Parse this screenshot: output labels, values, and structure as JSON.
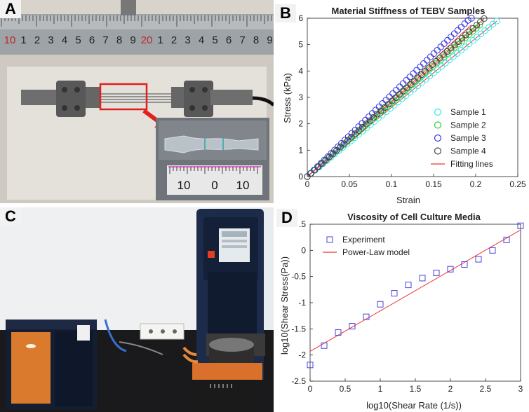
{
  "panels": {
    "a": "A",
    "b": "B",
    "c": "C",
    "d": "D"
  },
  "photo_a": {
    "ruler_numbers": [
      "10",
      "1",
      "2",
      "3",
      "4",
      "5",
      "6",
      "7",
      "8",
      "9",
      "20",
      "1",
      "2",
      "3",
      "4",
      "5",
      "6",
      "7",
      "8",
      "9"
    ],
    "scale_numbers": [
      "10",
      "0",
      "10"
    ]
  },
  "chart_data": [
    {
      "type": "scatter",
      "title": "Material Stiffness of TEBV Samples",
      "xlabel": "Strain",
      "ylabel": "Stress (kPa)",
      "xlim": [
        0,
        0.25
      ],
      "ylim": [
        0,
        6
      ],
      "xticks": [
        "0",
        "0.05",
        "0.1",
        "0.15",
        "0.2",
        "0.25"
      ],
      "yticks": [
        "0",
        "1",
        "2",
        "3",
        "4",
        "5",
        "6"
      ],
      "legend_position": "bottom-right",
      "series": [
        {
          "name": "Sample 1",
          "color": "#33e6e6",
          "marker": "circle",
          "slope": 26.2,
          "xmax": 0.225
        },
        {
          "name": "Sample 2",
          "color": "#33cc33",
          "marker": "circle",
          "slope": 28.0,
          "xmax": 0.205
        },
        {
          "name": "Sample 3",
          "color": "#3333e6",
          "marker": "circle",
          "slope": 31.0,
          "xmax": 0.195
        },
        {
          "name": "Sample 4",
          "color": "#444444",
          "marker": "circle",
          "slope": 28.5,
          "xmax": 0.21
        }
      ],
      "fit": {
        "name": "Fitting lines",
        "color": "#ee3333",
        "slopes": [
          26.2,
          28.0,
          29.5,
          28.5
        ]
      }
    },
    {
      "type": "scatter",
      "title": "Viscosity of Cell Culture Media",
      "xlabel": "log10(Shear Rate (1/s))",
      "ylabel": "log10(Shear Stress(Pa))",
      "xlim": [
        0,
        3
      ],
      "ylim": [
        -2.5,
        0.5
      ],
      "xticks": [
        "0",
        "0.5",
        "1",
        "1.5",
        "2",
        "2.5",
        "3"
      ],
      "yticks": [
        "-2.5",
        "-2",
        "-1.5",
        "-1",
        "-0.5",
        "0",
        ".5"
      ],
      "legend_position": "top-left",
      "series": [
        {
          "name": "Experiment",
          "color": "#4444dd",
          "marker": "square",
          "x": [
            0,
            0.2,
            0.4,
            0.6,
            0.8,
            1.0,
            1.2,
            1.4,
            1.6,
            1.8,
            2.0,
            2.2,
            2.4,
            2.6,
            2.8,
            3.0
          ],
          "y": [
            -2.19,
            -1.82,
            -1.57,
            -1.45,
            -1.27,
            -1.03,
            -0.82,
            -0.66,
            -0.53,
            -0.43,
            -0.36,
            -0.27,
            -0.17,
            0.0,
            0.2,
            0.47
          ]
        }
      ],
      "fit": {
        "name": "Power-Law model",
        "color": "#ee3333",
        "x": [
          0,
          3
        ],
        "y": [
          -1.93,
          0.39
        ]
      }
    }
  ]
}
